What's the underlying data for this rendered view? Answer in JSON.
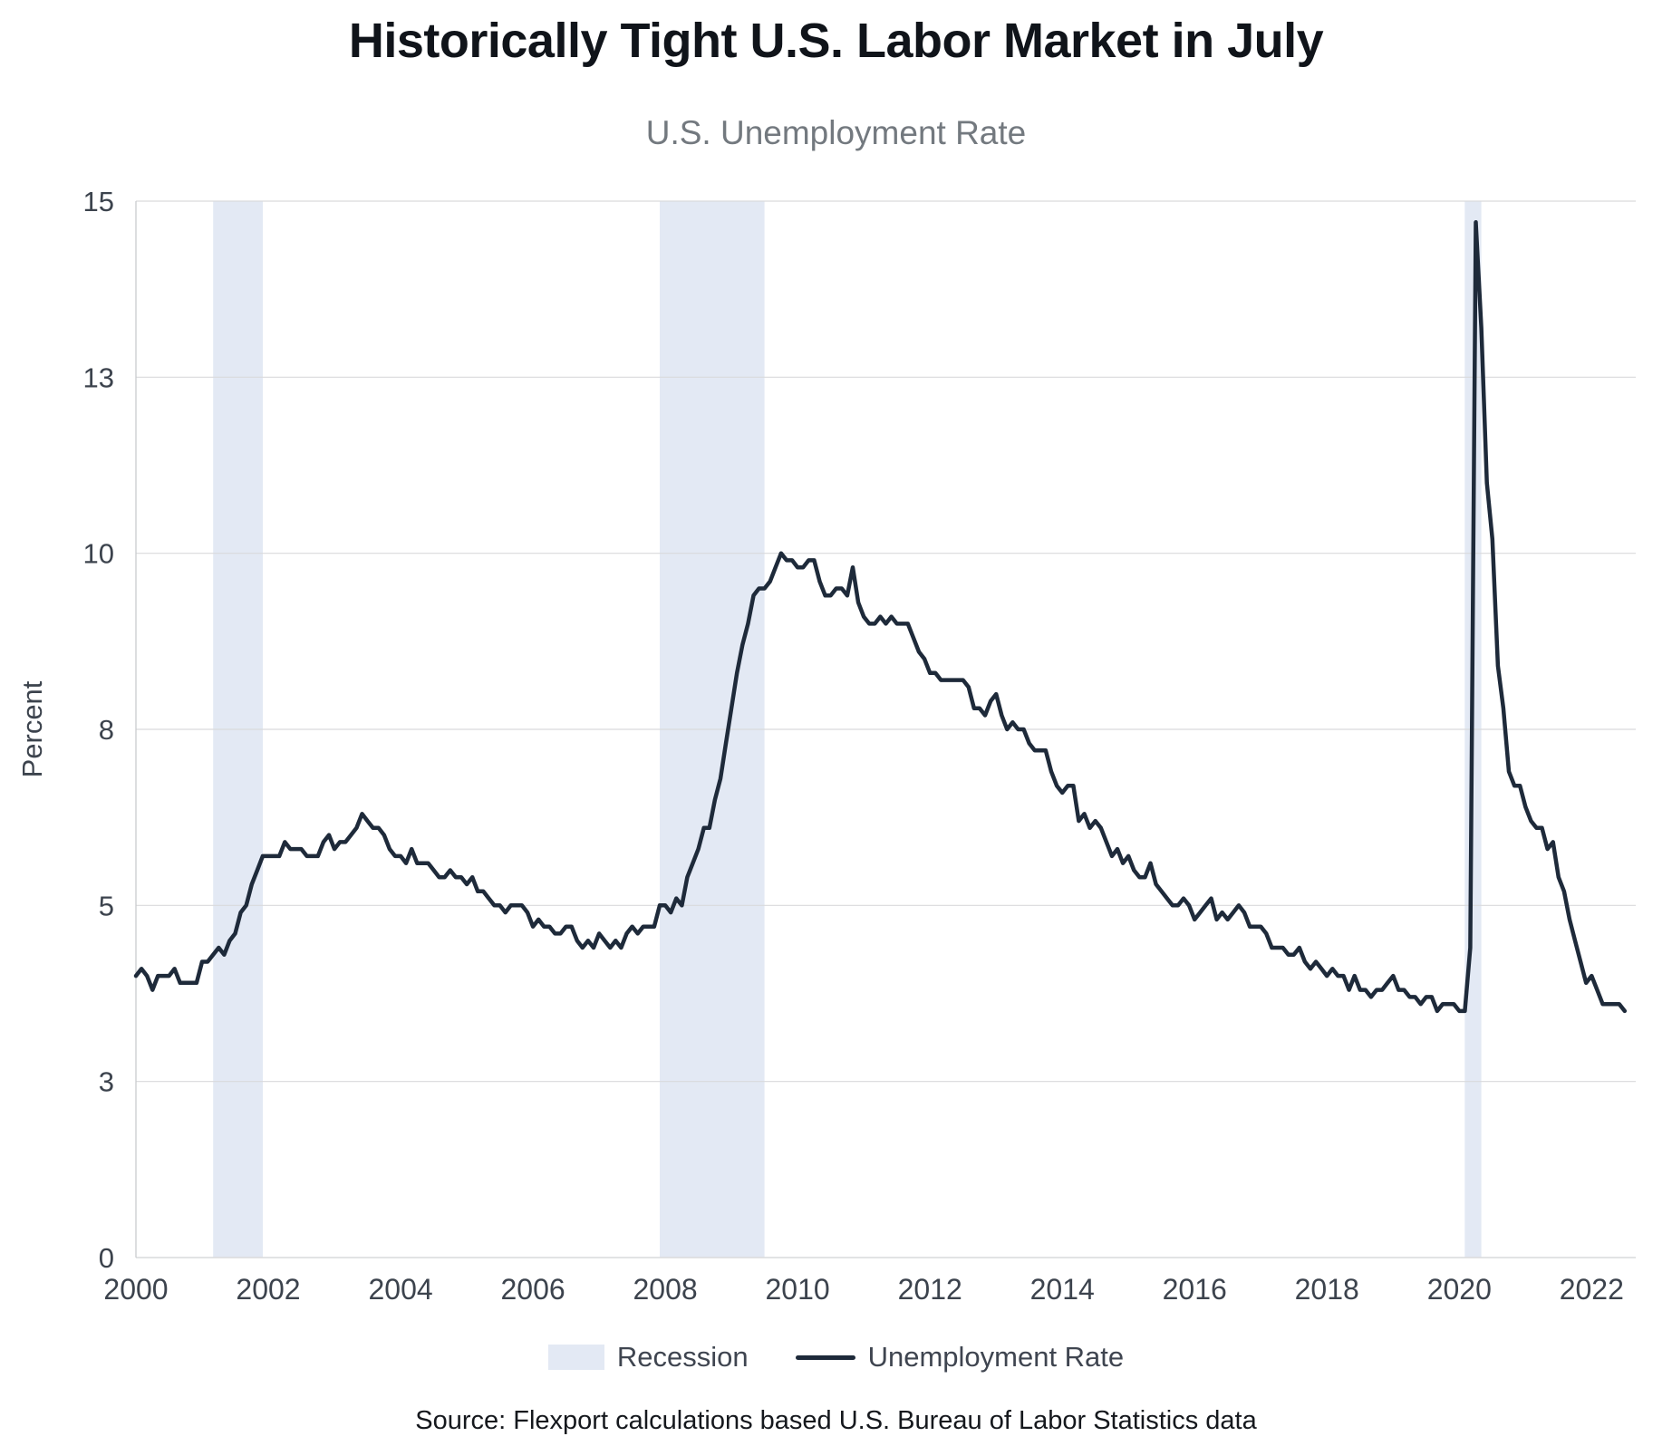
{
  "title": "Historically Tight U.S. Labor Market in July",
  "subtitle": "U.S. Unemployment Rate",
  "source": "Source: Flexport calculations based U.S. Bureau of Labor Statistics data",
  "legend": {
    "recession_label": "Recession",
    "line_label": "Unemployment Rate"
  },
  "colors": {
    "line": "#1e2a3a",
    "recession": "#e3e9f4",
    "grid": "#d9dadc",
    "axis": "#c9cbce",
    "title": "#10141a",
    "subtitle": "#73797f",
    "tick": "#3c434d"
  },
  "chart_data": {
    "type": "line",
    "title": "U.S. Unemployment Rate",
    "xlabel": "",
    "ylabel": "Percent",
    "x_start_year": 2000,
    "x_interval": "monthly",
    "xlim": [
      2000,
      2022.667
    ],
    "ylim": [
      0,
      15
    ],
    "grid": "horizontal",
    "legend_position": "bottom",
    "x_ticks": [
      2000,
      2002,
      2004,
      2006,
      2008,
      2010,
      2012,
      2014,
      2016,
      2018,
      2020,
      2022
    ],
    "y_ticks": [
      {
        "value": 0,
        "label": "0"
      },
      {
        "value": 2.5,
        "label": "3"
      },
      {
        "value": 5,
        "label": "5"
      },
      {
        "value": 7.5,
        "label": "8"
      },
      {
        "value": 10,
        "label": "10"
      },
      {
        "value": 12.5,
        "label": "13"
      },
      {
        "value": 15,
        "label": "15"
      }
    ],
    "recessions": [
      {
        "start": 2001.167,
        "end": 2001.917
      },
      {
        "start": 2007.917,
        "end": 2009.5
      },
      {
        "start": 2020.083,
        "end": 2020.333
      }
    ],
    "series": [
      {
        "name": "Unemployment Rate",
        "values": [
          4.0,
          4.1,
          4.0,
          3.8,
          4.0,
          4.0,
          4.0,
          4.1,
          3.9,
          3.9,
          3.9,
          3.9,
          4.2,
          4.2,
          4.3,
          4.4,
          4.3,
          4.5,
          4.6,
          4.9,
          5.0,
          5.3,
          5.5,
          5.7,
          5.7,
          5.7,
          5.7,
          5.9,
          5.8,
          5.8,
          5.8,
          5.7,
          5.7,
          5.7,
          5.9,
          6.0,
          5.8,
          5.9,
          5.9,
          6.0,
          6.1,
          6.3,
          6.2,
          6.1,
          6.1,
          6.0,
          5.8,
          5.7,
          5.7,
          5.6,
          5.8,
          5.6,
          5.6,
          5.6,
          5.5,
          5.4,
          5.4,
          5.5,
          5.4,
          5.4,
          5.3,
          5.4,
          5.2,
          5.2,
          5.1,
          5.0,
          5.0,
          4.9,
          5.0,
          5.0,
          5.0,
          4.9,
          4.7,
          4.8,
          4.7,
          4.7,
          4.6,
          4.6,
          4.7,
          4.7,
          4.5,
          4.4,
          4.5,
          4.4,
          4.6,
          4.5,
          4.4,
          4.5,
          4.4,
          4.6,
          4.7,
          4.6,
          4.7,
          4.7,
          4.7,
          5.0,
          5.0,
          4.9,
          5.1,
          5.0,
          5.4,
          5.6,
          5.8,
          6.1,
          6.1,
          6.5,
          6.8,
          7.3,
          7.8,
          8.3,
          8.7,
          9.0,
          9.4,
          9.5,
          9.5,
          9.6,
          9.8,
          10.0,
          9.9,
          9.9,
          9.8,
          9.8,
          9.9,
          9.9,
          9.6,
          9.4,
          9.4,
          9.5,
          9.5,
          9.4,
          9.8,
          9.3,
          9.1,
          9.0,
          9.0,
          9.1,
          9.0,
          9.1,
          9.0,
          9.0,
          9.0,
          8.8,
          8.6,
          8.5,
          8.3,
          8.3,
          8.2,
          8.2,
          8.2,
          8.2,
          8.2,
          8.1,
          7.8,
          7.8,
          7.7,
          7.9,
          8.0,
          7.7,
          7.5,
          7.6,
          7.5,
          7.5,
          7.3,
          7.2,
          7.2,
          7.2,
          6.9,
          6.7,
          6.6,
          6.7,
          6.7,
          6.2,
          6.3,
          6.1,
          6.2,
          6.1,
          5.9,
          5.7,
          5.8,
          5.6,
          5.7,
          5.5,
          5.4,
          5.4,
          5.6,
          5.3,
          5.2,
          5.1,
          5.0,
          5.0,
          5.1,
          5.0,
          4.8,
          4.9,
          5.0,
          5.1,
          4.8,
          4.9,
          4.8,
          4.9,
          5.0,
          4.9,
          4.7,
          4.7,
          4.7,
          4.6,
          4.4,
          4.4,
          4.4,
          4.3,
          4.3,
          4.4,
          4.2,
          4.1,
          4.2,
          4.1,
          4.0,
          4.1,
          4.0,
          4.0,
          3.8,
          4.0,
          3.8,
          3.8,
          3.7,
          3.8,
          3.8,
          3.9,
          4.0,
          3.8,
          3.8,
          3.7,
          3.7,
          3.6,
          3.7,
          3.7,
          3.5,
          3.6,
          3.6,
          3.6,
          3.5,
          3.5,
          4.4,
          14.7,
          13.2,
          11.0,
          10.2,
          8.4,
          7.8,
          6.9,
          6.7,
          6.7,
          6.4,
          6.2,
          6.1,
          6.1,
          5.8,
          5.9,
          5.4,
          5.2,
          4.8,
          4.5,
          4.2,
          3.9,
          4.0,
          3.8,
          3.6,
          3.6,
          3.6,
          3.6,
          3.5
        ]
      }
    ]
  }
}
